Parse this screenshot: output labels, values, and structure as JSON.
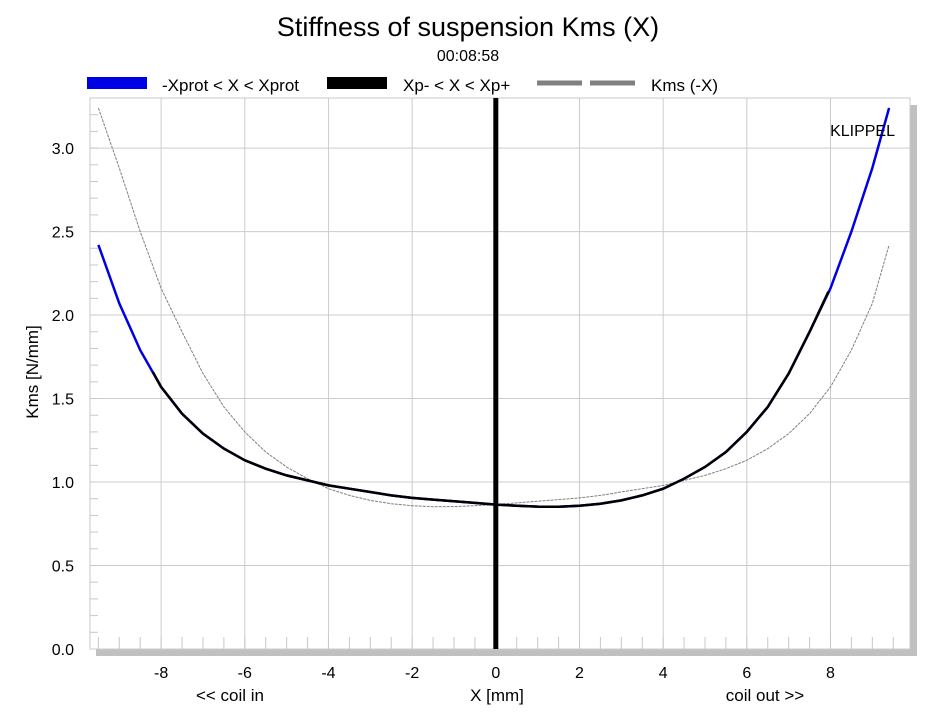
{
  "chart_data": {
    "type": "line",
    "title": "Stiffness of suspension Kms (X)",
    "subtitle": "00:08:58",
    "xlabel": "X [mm]",
    "ylabel": "Kms [N/mm]",
    "x_annotation_left": "<< coil in",
    "x_annotation_right": "coil out >>",
    "watermark": "KLIPPEL",
    "xlim": [
      -9.7,
      9.9
    ],
    "ylim": [
      0,
      3.3
    ],
    "x_ticks": [
      "-8",
      "-6",
      "-4",
      "-2",
      "0",
      "2",
      "4",
      "6",
      "8"
    ],
    "y_ticks": [
      "0.0",
      "0.5",
      "1.0",
      "1.5",
      "2.0",
      "2.5",
      "3.0"
    ],
    "grid": true,
    "legend_position": "top",
    "series": [
      {
        "name": "-Xprot < X < Xprot",
        "color": "#0000e6",
        "style": "solid",
        "x": [
          -9.5,
          -9.0,
          -8.5,
          -8.0,
          -7.5,
          -7.0,
          -6.5,
          -6.0,
          -5.5,
          -5.0,
          -4.5,
          -4.0,
          -3.5,
          -3.0,
          -2.5,
          -2.0,
          -1.5,
          -1.0,
          -0.5,
          0.0,
          0.5,
          1.0,
          1.5,
          2.0,
          2.5,
          3.0,
          3.5,
          4.0,
          4.5,
          5.0,
          5.5,
          6.0,
          6.5,
          7.0,
          7.5,
          8.0,
          8.5,
          9.0,
          9.4
        ],
        "y": [
          2.42,
          2.07,
          1.79,
          1.57,
          1.41,
          1.29,
          1.2,
          1.13,
          1.08,
          1.04,
          1.01,
          0.98,
          0.96,
          0.94,
          0.92,
          0.905,
          0.895,
          0.885,
          0.875,
          0.865,
          0.858,
          0.853,
          0.852,
          0.858,
          0.87,
          0.89,
          0.92,
          0.96,
          1.02,
          1.09,
          1.18,
          1.3,
          1.45,
          1.65,
          1.9,
          2.16,
          2.5,
          2.88,
          3.24
        ]
      },
      {
        "name": "Xp- < X < Xp+",
        "color": "#000000",
        "style": "solid",
        "x": [
          -8.2,
          -8.0,
          -7.5,
          -7.0,
          -6.5,
          -6.0,
          -5.5,
          -5.0,
          -4.5,
          -4.0,
          -3.5,
          -3.0,
          -2.5,
          -2.0,
          -1.5,
          -1.0,
          -0.5,
          0.0,
          0.5,
          1.0,
          1.5,
          2.0,
          2.5,
          3.0,
          3.5,
          4.0,
          4.5,
          5.0,
          5.5,
          6.0,
          6.5,
          7.0,
          7.5,
          7.95
        ],
        "y": [
          1.66,
          1.57,
          1.41,
          1.29,
          1.2,
          1.13,
          1.08,
          1.04,
          1.01,
          0.98,
          0.96,
          0.94,
          0.92,
          0.905,
          0.895,
          0.885,
          0.875,
          0.865,
          0.858,
          0.853,
          0.852,
          0.858,
          0.87,
          0.89,
          0.92,
          0.96,
          1.02,
          1.09,
          1.18,
          1.3,
          1.45,
          1.65,
          1.9,
          2.14
        ]
      },
      {
        "name": "Kms (-X)",
        "color": "#808080",
        "style": "dashed",
        "x": [
          -9.5,
          -9.0,
          -8.5,
          -8.0,
          -7.5,
          -7.0,
          -6.5,
          -6.0,
          -5.5,
          -5.0,
          -4.5,
          -4.0,
          -3.5,
          -3.0,
          -2.5,
          -2.0,
          -1.5,
          -1.0,
          -0.5,
          0.0,
          0.5,
          1.0,
          1.5,
          2.0,
          2.5,
          3.0,
          3.5,
          4.0,
          4.5,
          5.0,
          5.5,
          6.0,
          6.5,
          7.0,
          7.5,
          8.0,
          8.5,
          9.0,
          9.4
        ],
        "y": [
          3.24,
          2.88,
          2.5,
          2.16,
          1.9,
          1.65,
          1.45,
          1.3,
          1.18,
          1.09,
          1.02,
          0.96,
          0.92,
          0.89,
          0.87,
          0.858,
          0.852,
          0.853,
          0.858,
          0.865,
          0.875,
          0.885,
          0.895,
          0.905,
          0.92,
          0.94,
          0.96,
          0.98,
          1.01,
          1.04,
          1.08,
          1.13,
          1.2,
          1.29,
          1.41,
          1.57,
          1.79,
          2.07,
          2.42
        ]
      }
    ],
    "vertical_marker": {
      "x": 0,
      "color": "#000000"
    }
  }
}
